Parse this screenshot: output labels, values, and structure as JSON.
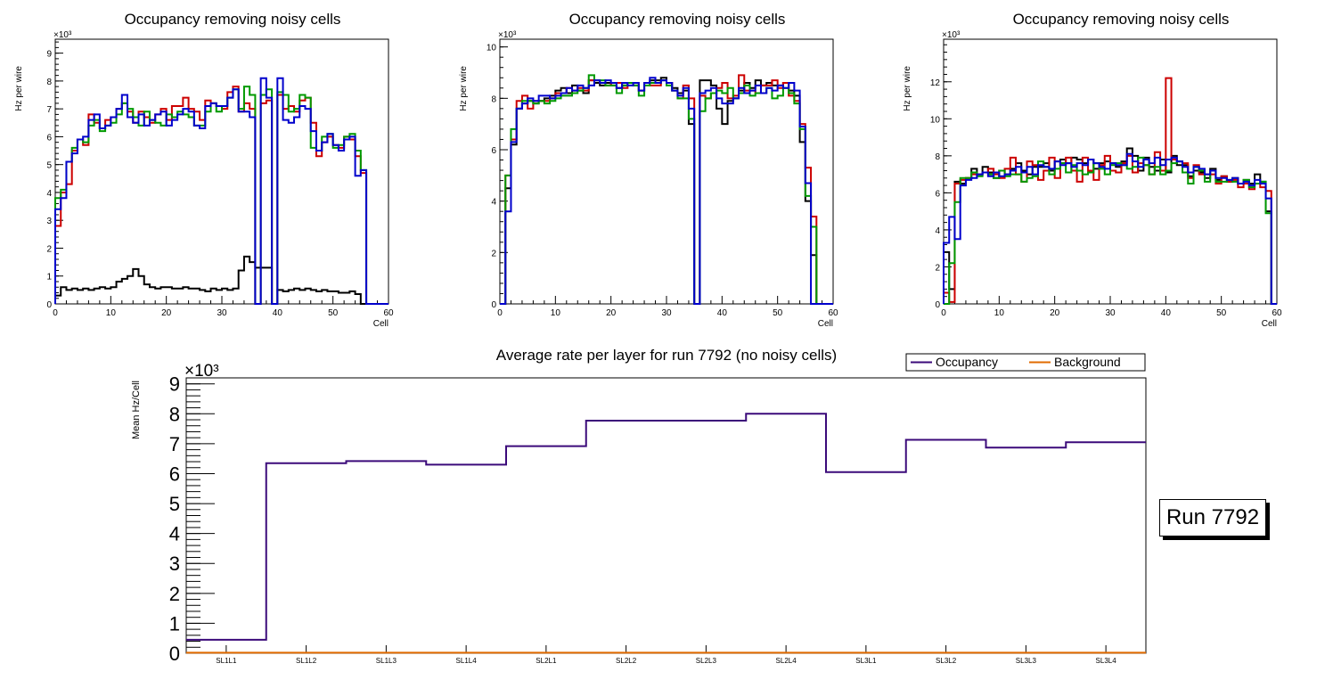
{
  "chart_data": [
    {
      "type": "line",
      "title": "Occupancy removing noisy cells",
      "xlabel": "Cell",
      "ylabel": "Hz per wire",
      "exponent": "×10³",
      "xlim": [
        0,
        60
      ],
      "ylim": [
        0,
        9.5
      ],
      "xticks": [
        0,
        10,
        20,
        30,
        40,
        50,
        60
      ],
      "yticks": [
        0,
        1,
        2,
        3,
        4,
        5,
        6,
        7,
        8,
        9
      ],
      "series": [
        {
          "name": "layer-black",
          "color": "#000000",
          "values": [
            0.3,
            0.6,
            0.5,
            0.55,
            0.5,
            0.55,
            0.5,
            0.55,
            0.6,
            0.55,
            0.6,
            0.8,
            0.9,
            1.0,
            1.25,
            1.0,
            0.7,
            0.6,
            0.55,
            0.6,
            0.6,
            0.55,
            0.55,
            0.6,
            0.55,
            0.55,
            0.5,
            0.45,
            0.55,
            0.5,
            0.55,
            0.5,
            0.55,
            1.2,
            1.7,
            1.5,
            1.3,
            1.3,
            1.3,
            0,
            0.5,
            0.45,
            0.5,
            0.55,
            0.5,
            0.55,
            0.5,
            0.45,
            0.5,
            0.45,
            0.45,
            0.4,
            0.4,
            0.45,
            0.35,
            0,
            0,
            0,
            0,
            0
          ]
        },
        {
          "name": "layer-red",
          "color": "#cc0000",
          "values": [
            2.8,
            4.0,
            4.3,
            5.5,
            5.9,
            5.7,
            6.8,
            6.5,
            6.3,
            6.6,
            6.7,
            7.0,
            7.2,
            6.9,
            6.5,
            6.9,
            6.7,
            6.5,
            6.8,
            7.0,
            6.6,
            7.1,
            7.1,
            7.4,
            7.0,
            6.9,
            6.6,
            7.3,
            7.2,
            7.1,
            7.0,
            7.6,
            7.8,
            6.9,
            7.2,
            7.0,
            0,
            7.2,
            7.3,
            0,
            7.5,
            7.0,
            7.1,
            6.9,
            7.3,
            7.4,
            6.5,
            5.3,
            5.8,
            6.0,
            5.7,
            5.6,
            6.0,
            5.9,
            5.3,
            4.7,
            0,
            0,
            0,
            0
          ]
        },
        {
          "name": "layer-green",
          "color": "#009900",
          "values": [
            3.8,
            4.1,
            5.1,
            5.6,
            5.9,
            5.8,
            6.4,
            6.6,
            6.2,
            6.4,
            6.5,
            6.8,
            7.2,
            7.0,
            6.7,
            6.4,
            6.9,
            6.6,
            6.5,
            6.4,
            6.8,
            6.7,
            6.9,
            6.8,
            6.7,
            6.4,
            6.4,
            6.9,
            7.2,
            6.9,
            7.1,
            7.4,
            7.7,
            7.0,
            7.8,
            7.5,
            0,
            7.5,
            7.7,
            0,
            7.6,
            7.5,
            6.9,
            7.0,
            7.5,
            7.4,
            5.6,
            5.5,
            6.0,
            6.1,
            5.6,
            5.7,
            6.0,
            6.1,
            5.5,
            4.8,
            0,
            0,
            0,
            0
          ]
        },
        {
          "name": "layer-blue",
          "color": "#0000cc",
          "values": [
            3.4,
            3.8,
            5.1,
            5.4,
            5.9,
            6.0,
            6.6,
            6.8,
            6.3,
            6.4,
            6.7,
            7.0,
            7.5,
            6.7,
            6.5,
            6.8,
            6.4,
            6.6,
            6.8,
            6.9,
            6.4,
            6.6,
            6.8,
            7.0,
            6.9,
            6.4,
            6.3,
            7.1,
            7.2,
            7.1,
            7.1,
            7.4,
            7.7,
            6.9,
            6.9,
            6.7,
            0,
            8.1,
            7.4,
            0,
            8.1,
            6.6,
            6.5,
            6.7,
            7.1,
            7.0,
            6.2,
            5.5,
            5.8,
            6.1,
            5.7,
            5.5,
            5.9,
            6.0,
            4.6,
            4.8,
            0,
            0,
            0,
            0
          ]
        }
      ]
    },
    {
      "type": "line",
      "title": "Occupancy removing noisy cells",
      "xlabel": "Cell",
      "ylabel": "Hz per wire",
      "exponent": "×10³",
      "xlim": [
        0,
        60
      ],
      "ylim": [
        0,
        10.3
      ],
      "xticks": [
        0,
        10,
        20,
        30,
        40,
        50,
        60
      ],
      "yticks": [
        0,
        2,
        4,
        6,
        8,
        10
      ],
      "series": [
        {
          "name": "layer-black",
          "color": "#000000",
          "values": [
            0,
            4.5,
            6.2,
            7.6,
            7.8,
            7.9,
            7.8,
            7.9,
            8.0,
            8.1,
            8.3,
            8.4,
            8.2,
            8.5,
            8.3,
            8.2,
            8.7,
            8.6,
            8.5,
            8.6,
            8.5,
            8.4,
            8.5,
            8.6,
            8.5,
            8.3,
            8.6,
            8.7,
            8.7,
            8.8,
            8.6,
            8.4,
            8.2,
            8.3,
            7.0,
            0,
            8.7,
            8.7,
            8.5,
            7.6,
            7.0,
            7.9,
            8.0,
            8.3,
            8.6,
            8.4,
            8.7,
            8.5,
            8.6,
            8.5,
            8.5,
            8.6,
            8.3,
            8.1,
            6.3,
            4.0,
            1.9,
            0,
            0,
            0
          ]
        },
        {
          "name": "layer-red",
          "color": "#cc0000",
          "values": [
            0,
            5.0,
            6.4,
            7.9,
            8.1,
            7.6,
            7.9,
            7.9,
            7.9,
            8.0,
            8.2,
            8.2,
            8.4,
            8.3,
            8.4,
            8.3,
            8.7,
            8.7,
            8.6,
            8.5,
            8.6,
            8.6,
            8.4,
            8.6,
            8.6,
            8.3,
            8.6,
            8.5,
            8.5,
            8.7,
            8.6,
            8.3,
            8.0,
            8.5,
            8.0,
            0,
            8.1,
            8.0,
            8.2,
            8.4,
            8.6,
            8.0,
            8.1,
            8.9,
            8.3,
            8.3,
            8.2,
            8.5,
            8.5,
            8.7,
            8.4,
            8.6,
            8.1,
            7.9,
            7.0,
            5.3,
            3.4,
            0,
            0,
            0
          ]
        },
        {
          "name": "layer-green",
          "color": "#009900",
          "values": [
            0,
            5.0,
            6.8,
            7.6,
            7.9,
            7.9,
            7.8,
            7.9,
            7.8,
            7.9,
            8.0,
            8.1,
            8.1,
            8.2,
            8.3,
            8.4,
            8.9,
            8.7,
            8.7,
            8.5,
            8.5,
            8.2,
            8.5,
            8.6,
            8.5,
            8.1,
            8.5,
            8.6,
            8.6,
            8.7,
            8.5,
            8.3,
            8.0,
            8.0,
            7.2,
            0,
            7.5,
            8.0,
            8.2,
            8.3,
            8.2,
            8.4,
            8.0,
            8.2,
            8.5,
            8.1,
            8.2,
            8.2,
            8.4,
            8.0,
            8.1,
            8.4,
            8.2,
            7.8,
            6.8,
            4.2,
            3.0,
            0,
            0,
            0
          ]
        },
        {
          "name": "layer-blue",
          "color": "#0000cc",
          "values": [
            0,
            3.6,
            6.3,
            7.6,
            7.8,
            8.0,
            7.9,
            8.1,
            8.1,
            8.0,
            8.1,
            8.2,
            8.4,
            8.3,
            8.5,
            8.4,
            8.5,
            8.7,
            8.6,
            8.7,
            8.6,
            8.4,
            8.6,
            8.5,
            8.6,
            8.3,
            8.6,
            8.8,
            8.6,
            8.7,
            8.6,
            8.3,
            8.1,
            8.4,
            7.6,
            0,
            8.2,
            8.3,
            8.4,
            8.0,
            7.8,
            7.8,
            8.0,
            8.4,
            8.2,
            8.3,
            8.5,
            8.2,
            8.4,
            8.3,
            8.5,
            8.4,
            8.6,
            8.3,
            6.9,
            4.7,
            0,
            0,
            0,
            0
          ]
        }
      ]
    },
    {
      "type": "line",
      "title": "Occupancy removing noisy cells",
      "xlabel": "Cell",
      "ylabel": "Hz per wire",
      "exponent": "×10³",
      "xlim": [
        0,
        60
      ],
      "ylim": [
        0,
        14.3
      ],
      "xticks": [
        0,
        10,
        20,
        30,
        40,
        50,
        60
      ],
      "yticks": [
        0,
        2,
        4,
        6,
        8,
        10,
        12
      ],
      "series": [
        {
          "name": "layer-black",
          "color": "#000000",
          "values": [
            2.8,
            0.8,
            6.6,
            6.5,
            6.8,
            7.3,
            7.0,
            7.4,
            7.1,
            6.8,
            7.2,
            7.0,
            7.3,
            7.6,
            7.2,
            7.0,
            7.4,
            7.4,
            7.6,
            7.2,
            7.7,
            7.8,
            7.6,
            7.9,
            7.8,
            7.6,
            7.8,
            7.3,
            7.6,
            7.7,
            7.6,
            7.4,
            7.7,
            8.4,
            8.0,
            7.2,
            7.9,
            7.4,
            7.2,
            7.8,
            7.1,
            8.0,
            7.5,
            7.5,
            6.9,
            7.2,
            7.1,
            6.8,
            7.3,
            6.7,
            6.9,
            6.6,
            6.8,
            6.5,
            6.7,
            6.5,
            7.0,
            6.6,
            5.0,
            0
          ]
        },
        {
          "name": "layer-red",
          "color": "#cc0000",
          "values": [
            0.6,
            0.1,
            6.5,
            6.7,
            6.8,
            7.0,
            7.0,
            7.1,
            7.3,
            7.0,
            6.8,
            7.3,
            7.9,
            7.0,
            6.6,
            7.7,
            7.5,
            6.7,
            7.2,
            7.9,
            6.8,
            7.6,
            7.9,
            7.2,
            6.6,
            7.9,
            7.2,
            6.7,
            7.5,
            8.0,
            7.2,
            7.1,
            7.6,
            8.0,
            7.1,
            7.6,
            7.5,
            7.0,
            8.2,
            7.2,
            12.2,
            7.8,
            7.7,
            7.6,
            6.8,
            7.5,
            7.0,
            7.0,
            7.0,
            6.5,
            6.9,
            6.6,
            6.7,
            6.3,
            6.5,
            6.2,
            6.5,
            6.3,
            6.1,
            0
          ]
        },
        {
          "name": "layer-green",
          "color": "#009900",
          "values": [
            0,
            2.2,
            5.5,
            6.8,
            6.8,
            7.1,
            6.9,
            7.1,
            7.0,
            6.8,
            7.2,
            6.9,
            7.0,
            7.0,
            6.6,
            6.8,
            6.9,
            7.7,
            7.4,
            7.0,
            7.3,
            7.6,
            7.1,
            7.5,
            7.2,
            7.0,
            7.1,
            7.6,
            7.3,
            7.0,
            7.5,
            7.6,
            7.5,
            7.3,
            7.4,
            7.9,
            7.5,
            7.0,
            7.4,
            7.0,
            7.2,
            7.6,
            7.7,
            7.1,
            6.5,
            7.4,
            7.2,
            6.6,
            7.2,
            6.6,
            6.6,
            6.7,
            6.6,
            6.5,
            6.7,
            6.3,
            6.5,
            6.6,
            4.9,
            0
          ]
        },
        {
          "name": "layer-blue",
          "color": "#0000cc",
          "values": [
            3.3,
            4.7,
            3.5,
            6.4,
            6.7,
            6.8,
            7.0,
            7.1,
            6.9,
            7.1,
            6.9,
            7.0,
            7.2,
            7.4,
            7.1,
            7.4,
            7.0,
            7.5,
            7.4,
            7.3,
            7.7,
            7.5,
            7.6,
            7.4,
            7.6,
            7.5,
            7.8,
            7.6,
            7.4,
            7.3,
            7.6,
            7.5,
            7.5,
            8.1,
            7.7,
            7.4,
            7.8,
            7.6,
            7.9,
            7.5,
            7.8,
            7.9,
            7.7,
            7.4,
            7.1,
            7.4,
            7.3,
            7.0,
            7.2,
            6.8,
            6.8,
            6.7,
            6.8,
            6.5,
            6.6,
            6.4,
            6.7,
            6.5,
            5.7,
            0
          ]
        }
      ]
    },
    {
      "type": "line",
      "title": "Average rate per layer for run 7792 (no noisy cells)",
      "xlabel": "",
      "ylabel": "Mean Hz/Cell",
      "exponent": "×10³",
      "ylim": [
        0,
        9.2
      ],
      "yticks": [
        0,
        1,
        2,
        3,
        4,
        5,
        6,
        7,
        8,
        9
      ],
      "categories": [
        "SL1L1",
        "SL1L2",
        "SL1L3",
        "SL1L4",
        "SL2L1",
        "SL2L2",
        "SL2L3",
        "SL2L4",
        "SL3L1",
        "SL3L2",
        "SL3L3",
        "SL3L4"
      ],
      "legend": [
        {
          "label": "Occupancy",
          "color": "#3b0a7a"
        },
        {
          "label": "Background",
          "color": "#e06b00"
        }
      ],
      "series": [
        {
          "name": "Occupancy",
          "color": "#3b0a7a",
          "values": [
            0.45,
            6.35,
            6.42,
            6.3,
            6.92,
            7.77,
            7.77,
            8.0,
            6.05,
            7.13,
            6.87,
            7.05
          ]
        },
        {
          "name": "Background",
          "color": "#e06b00",
          "values": [
            0.02,
            0.02,
            0.02,
            0.02,
            0.02,
            0.02,
            0.02,
            0.02,
            0.02,
            0.02,
            0.02,
            0.02
          ]
        }
      ],
      "run_label": "Run 7792"
    }
  ]
}
